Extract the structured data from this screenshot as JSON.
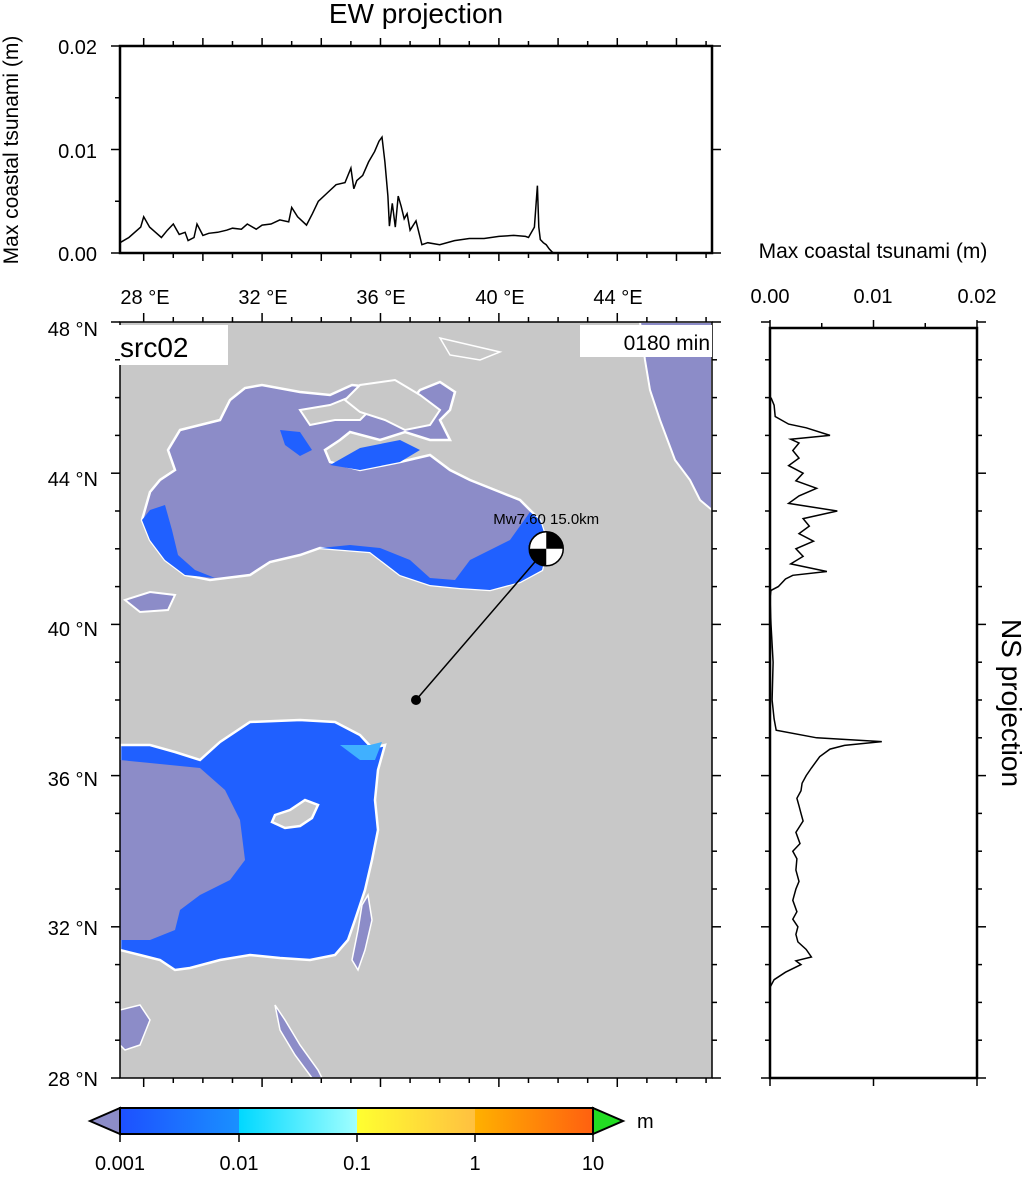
{
  "colors": {
    "land": "#c8c8c8",
    "sea_below_min": "#8c8cc8",
    "wave_blue": "#2060ff",
    "coastline": "#ffffff",
    "frame": "#000000",
    "label_bg": "#ffffff"
  },
  "map": {
    "source_label": "src02",
    "time_label": "0180 min",
    "lon_ticks": [
      "28 °E",
      "32 °E",
      "36 °E",
      "40 °E",
      "44 °E"
    ],
    "lat_ticks": [
      "48 °N",
      "44 °N",
      "40 °N",
      "36 °N",
      "32 °N",
      "28 °N"
    ],
    "event_label": "Mw7.60 15.0km",
    "epicenter": {
      "lon": 41.6,
      "lat": 42.0
    },
    "reference_point": {
      "lon": 37.2,
      "lat": 38.0
    }
  },
  "colorbar": {
    "unit": "m",
    "tick_labels": [
      "0.001",
      "0.01",
      "0.1",
      "1",
      "10"
    ],
    "segments": [
      "#1d5cff",
      "#00c8ff",
      "#ffff40",
      "#ff9000",
      "#ff0000"
    ],
    "under_color": "#8c8cc8",
    "over_color": "#22dd22"
  },
  "chart_data": [
    {
      "type": "line",
      "title": "EW projection",
      "xlabel": "",
      "ylabel": "Max coastal tsunami (m)",
      "xlim": [
        27.2,
        47.2
      ],
      "ylim": [
        0,
        0.02
      ],
      "x_tick_labels": [
        "28 °E",
        "32 °E",
        "36 °E",
        "40 °E",
        "44 °E"
      ],
      "y_tick_labels": [
        "0.00",
        "0.01",
        "0.02"
      ],
      "series": [
        {
          "x": [
            27.2,
            27.5,
            27.9,
            28.0,
            28.2,
            28.4,
            28.6,
            28.8,
            29.0,
            29.2,
            29.4,
            29.5,
            29.7,
            29.8,
            30.0,
            30.2,
            30.5,
            30.8,
            31.0,
            31.3,
            31.5,
            31.8,
            32.0,
            32.3,
            32.6,
            32.9,
            33.0,
            33.2,
            33.5,
            33.7,
            33.9,
            34.2,
            34.5,
            34.8,
            35.0,
            35.1,
            35.2,
            35.4,
            35.6,
            35.8,
            35.95,
            36.05,
            36.15,
            36.25,
            36.3,
            36.4,
            36.5,
            36.6,
            36.7,
            36.8,
            36.9,
            37.0,
            37.2,
            37.4,
            37.6,
            38.0,
            38.5,
            39.0,
            39.5,
            40.0,
            40.5,
            40.9,
            41.0,
            41.2,
            41.3,
            41.35,
            41.4,
            41.5,
            41.6,
            41.7,
            41.8,
            41.85
          ],
          "y": [
            0.001,
            0.0015,
            0.0025,
            0.0035,
            0.0025,
            0.002,
            0.0015,
            0.0022,
            0.0028,
            0.0018,
            0.002,
            0.0012,
            0.0015,
            0.0028,
            0.0017,
            0.0019,
            0.002,
            0.0022,
            0.0024,
            0.0023,
            0.0028,
            0.0023,
            0.0027,
            0.0028,
            0.0032,
            0.003,
            0.0044,
            0.0035,
            0.0027,
            0.0038,
            0.005,
            0.0058,
            0.0066,
            0.0068,
            0.0082,
            0.0062,
            0.007,
            0.0075,
            0.0088,
            0.0098,
            0.0108,
            0.0112,
            0.0088,
            0.0055,
            0.0026,
            0.0048,
            0.0025,
            0.0055,
            0.0045,
            0.0033,
            0.0038,
            0.0022,
            0.0031,
            0.0008,
            0.001,
            0.0008,
            0.0012,
            0.0014,
            0.0014,
            0.0016,
            0.0017,
            0.0016,
            0.0015,
            0.0025,
            0.0065,
            0.0025,
            0.0013,
            0.001,
            0.0008,
            0.0004,
            0.0001,
            0.0
          ]
        }
      ]
    },
    {
      "type": "line",
      "title": "NS projection",
      "xlabel": "Max coastal tsunami (m)",
      "ylabel": "",
      "xlim": [
        0,
        0.02
      ],
      "ylim": [
        28,
        48
      ],
      "x_tick_labels": [
        "0.00",
        "0.01",
        "0.02"
      ],
      "series": [
        {
          "lat": [
            46.0,
            45.8,
            45.5,
            45.3,
            45.2,
            45.0,
            44.9,
            44.8,
            44.6,
            44.4,
            44.2,
            44.0,
            43.8,
            43.6,
            43.4,
            43.2,
            43.0,
            42.8,
            42.6,
            42.4,
            42.2,
            42.0,
            41.8,
            41.6,
            41.4,
            41.3,
            41.2,
            41.0,
            40.9,
            40.7,
            40.0,
            39.0,
            38.0,
            37.5,
            37.2,
            37.0,
            36.9,
            36.8,
            36.7,
            36.5,
            36.2,
            36.0,
            35.8,
            35.6,
            35.4,
            35.2,
            35.0,
            34.8,
            34.5,
            34.2,
            34.0,
            33.8,
            33.5,
            33.2,
            33.0,
            32.7,
            32.4,
            32.2,
            32.0,
            31.8,
            31.6,
            31.4,
            31.2,
            31.1,
            31.0,
            30.8,
            30.6,
            30.4
          ],
          "y": [
            0.0001,
            0.0004,
            0.0005,
            0.0018,
            0.0035,
            0.0058,
            0.002,
            0.0028,
            0.0022,
            0.0028,
            0.0018,
            0.0032,
            0.0025,
            0.0045,
            0.0028,
            0.0018,
            0.0065,
            0.0032,
            0.0038,
            0.0028,
            0.0042,
            0.0025,
            0.0032,
            0.002,
            0.0055,
            0.0022,
            0.0015,
            0.0008,
            0.0001,
            0.0,
            0.0001,
            0.0003,
            0.0002,
            0.0004,
            0.0006,
            0.0045,
            0.0108,
            0.0072,
            0.0058,
            0.0048,
            0.004,
            0.0035,
            0.0031,
            0.003,
            0.0026,
            0.0028,
            0.003,
            0.0032,
            0.0025,
            0.0029,
            0.0022,
            0.0026,
            0.0025,
            0.0028,
            0.0025,
            0.0022,
            0.0026,
            0.0022,
            0.0027,
            0.0025,
            0.0027,
            0.0035,
            0.004,
            0.0025,
            0.003,
            0.0015,
            0.0004,
            0.0
          ]
        }
      ]
    },
    {
      "type": "heatmap",
      "title": "src02 0180 min",
      "xlim": [
        27.2,
        47.2
      ],
      "ylim": [
        28,
        48
      ],
      "x_tick_labels": [
        "28 °E",
        "32 °E",
        "36 °E",
        "40 °E",
        "44 °E"
      ],
      "y_tick_labels": [
        "28 °N",
        "32 °N",
        "36 °N",
        "40 °N",
        "44 °N",
        "48 °N"
      ],
      "colorbar_unit": "m",
      "colorbar_ticks": [
        0.001,
        0.01,
        0.1,
        1,
        10
      ],
      "colorbar_scale": "log"
    }
  ]
}
